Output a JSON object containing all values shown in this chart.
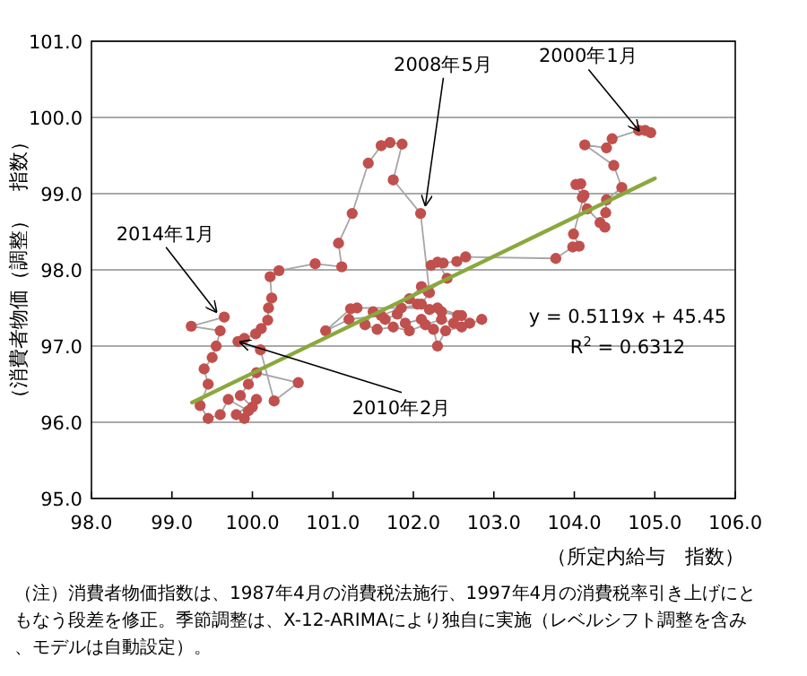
{
  "chart_data": {
    "type": "line",
    "xlabel": "（所定内給与　指数）",
    "ylabel": "（消費者物価（調整）　指数）",
    "xlim": [
      98,
      106
    ],
    "xticks": [
      {
        "value": 98,
        "label": "98.0"
      },
      {
        "value": 99,
        "label": "99.0"
      },
      {
        "value": 100,
        "label": "100.0"
      },
      {
        "value": 101,
        "label": "101.0"
      },
      {
        "value": 102,
        "label": "102.0"
      },
      {
        "value": 103,
        "label": "103.0"
      },
      {
        "value": 104,
        "label": "104.0"
      },
      {
        "value": 105,
        "label": "105.0"
      },
      {
        "value": 106,
        "label": "106.0"
      }
    ],
    "ylim": [
      95,
      101
    ],
    "yticks": [
      {
        "value": 95,
        "label": "95.0"
      },
      {
        "value": 96,
        "label": "96.0"
      },
      {
        "value": 97,
        "label": "97.0"
      },
      {
        "value": 98,
        "label": "98.0"
      },
      {
        "value": 99,
        "label": "99.0"
      },
      {
        "value": 100,
        "label": "100.0"
      },
      {
        "value": 101,
        "label": "101.0"
      }
    ],
    "grid": "y",
    "marker": "circle",
    "line_style": "solid",
    "series": [
      {
        "color": "#c0504d",
        "x": [
          104.95,
          104.88,
          104.8,
          104.47,
          104.4,
          104.13,
          104.49,
          104.59,
          104.4,
          104.39,
          104.32,
          104.38,
          104.16,
          104.1,
          104.02,
          104.08,
          104.12,
          103.99,
          104.06,
          103.98,
          103.77,
          102.65,
          102.54,
          102.37,
          102.22,
          102.3,
          102.42,
          102.18,
          102.1,
          101.95,
          102.05,
          102.2,
          102.35,
          102.55,
          102.7,
          102.85,
          102.6,
          102.4,
          102.3,
          102.25,
          102.1,
          101.9,
          101.8,
          101.65,
          101.5,
          101.4,
          101.55,
          101.75,
          101.95,
          102.15,
          102.35,
          102.5,
          102.6,
          102.3,
          101.3,
          101.22,
          100.91,
          101.2,
          101.6,
          101.85,
          102.1,
          102.2,
          102.09,
          101.75,
          101.86,
          101.71,
          101.6,
          101.44,
          101.24,
          101.07,
          101.11,
          100.78,
          100.33,
          100.22,
          100.24,
          100.2,
          100.19,
          100.11,
          100.04,
          99.9,
          99.82,
          100.1,
          100.27,
          100.57,
          100.05,
          99.95,
          99.85,
          100.0,
          99.9,
          99.8,
          100.05,
          99.95,
          99.7,
          99.6,
          99.45,
          99.35,
          99.45,
          99.4,
          99.5,
          99.55,
          99.6,
          99.24,
          99.65
        ],
        "values": [
          99.8,
          99.83,
          99.83,
          99.72,
          99.6,
          99.64,
          99.37,
          99.08,
          98.92,
          98.75,
          98.62,
          98.56,
          98.8,
          98.95,
          99.12,
          99.13,
          98.98,
          98.47,
          98.31,
          98.3,
          98.15,
          98.17,
          98.11,
          98.09,
          98.06,
          98.1,
          97.89,
          97.72,
          97.78,
          97.62,
          97.55,
          97.48,
          97.45,
          97.4,
          97.3,
          97.35,
          97.25,
          97.2,
          97.0,
          97.22,
          97.35,
          97.3,
          97.42,
          97.35,
          97.45,
          97.28,
          97.22,
          97.25,
          97.2,
          97.28,
          97.35,
          97.3,
          97.4,
          97.5,
          97.5,
          97.49,
          97.2,
          97.35,
          97.4,
          97.5,
          97.55,
          97.7,
          98.74,
          99.18,
          99.65,
          99.67,
          99.63,
          99.4,
          98.74,
          98.35,
          98.04,
          98.08,
          97.99,
          97.91,
          97.63,
          97.5,
          97.34,
          97.23,
          97.16,
          97.1,
          97.06,
          96.95,
          96.28,
          96.52,
          96.65,
          96.5,
          96.35,
          96.2,
          96.05,
          96.1,
          96.3,
          96.15,
          96.3,
          96.1,
          96.05,
          96.22,
          96.5,
          96.7,
          96.85,
          97.0,
          97.2,
          97.26,
          97.38
        ]
      },
      {
        "color": "#8aa83c",
        "marker": "none",
        "x": [
          99.25,
          105.0
        ],
        "values": [
          96.26,
          99.2
        ]
      }
    ],
    "annotations": [
      {
        "text": "2000年1月",
        "x": 104.8,
        "y": 99.83
      },
      {
        "text": "2008年5月",
        "x": 102.15,
        "y": 98.85
      },
      {
        "text": "2014年1月",
        "x": 99.55,
        "y": 97.45
      },
      {
        "text": "2010年2月",
        "x": 99.85,
        "y": 97.05
      },
      "y = 0.5119x + 45.45",
      "R$^{2}$ = 0.6312",
      "（注）消費者物価指数は、1987年4月の消費税法施行、1997年4月の消費税率引き上げにともなう段差を修正。季節調整は、X-12-ARIMAにより独自に実施（レベルシフト調整を含み、モデルは自動設定）。"
    ]
  }
}
